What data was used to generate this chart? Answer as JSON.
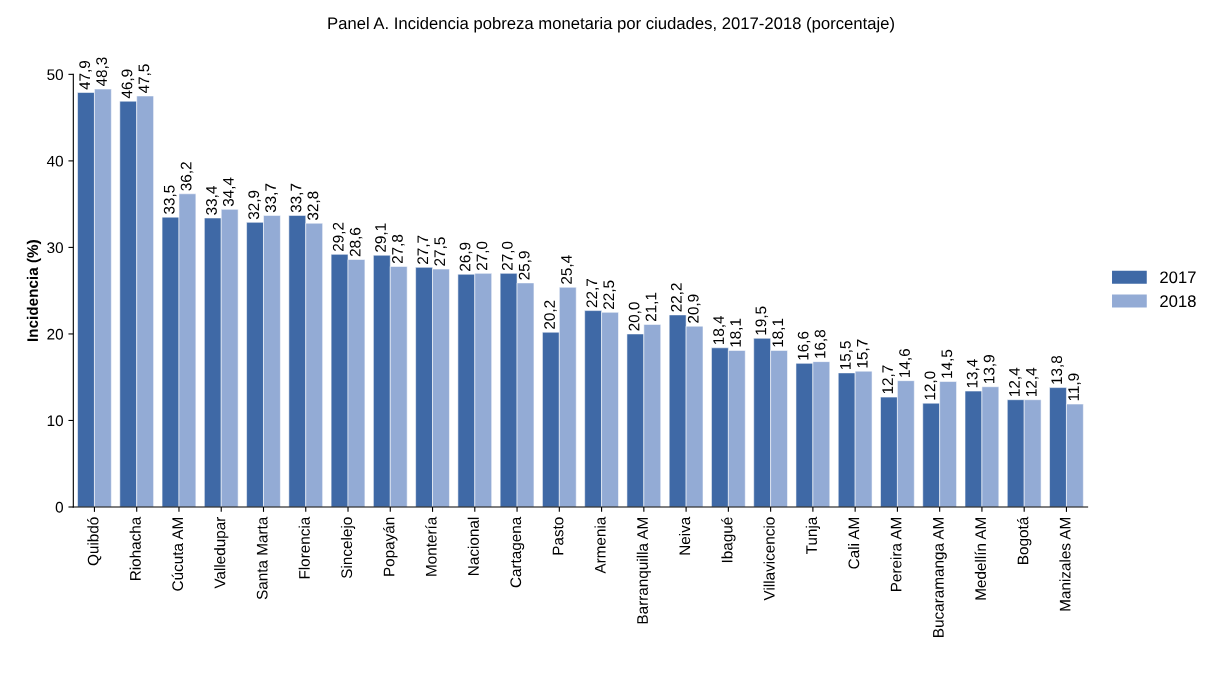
{
  "chart_data": {
    "type": "bar",
    "title": "Panel A. Incidencia pobreza monetaria por ciudades, 2017-2018 (porcentaje)",
    "ylabel": "Incidencia (%)",
    "categories": [
      "Quibdó",
      "Riohacha",
      "Cúcuta AM",
      "Valledupar",
      "Santa Marta",
      "Florencia",
      "Sincelejo",
      "Popayán",
      "Montería",
      "Nacional",
      "Cartagena",
      "Pasto",
      "Armenia",
      "Barranquilla AM",
      "Neiva",
      "Ibagué",
      "Villavicencio",
      "Tunja",
      "Cali AM",
      "Pereira AM",
      "Bucaramanga AM",
      "Medellín AM",
      "Bogotá",
      "Manizales AM"
    ],
    "series": [
      {
        "name": "2017",
        "color": "#3f69a6",
        "values": [
          47.9,
          46.9,
          33.5,
          33.4,
          32.9,
          33.7,
          29.2,
          29.1,
          27.7,
          26.9,
          27.0,
          20.2,
          22.7,
          20.0,
          22.2,
          18.4,
          19.5,
          16.6,
          15.5,
          12.7,
          12.0,
          13.4,
          12.4,
          13.8
        ],
        "value_labels": [
          "47,9",
          "46,9",
          "33,5",
          "33,4",
          "32,9",
          "33,7",
          "29,2",
          "29,1",
          "27,7",
          "26,9",
          "27,0",
          "20,2",
          "22,7",
          "20,0",
          "22,2",
          "18,4",
          "19,5",
          "16,6",
          "15,5",
          "12,7",
          "12,0",
          "13,4",
          "12,4",
          "13,8"
        ]
      },
      {
        "name": "2018",
        "color": "#93abd5",
        "values": [
          48.3,
          47.5,
          36.2,
          34.4,
          33.7,
          32.8,
          28.6,
          27.8,
          27.5,
          27.0,
          25.9,
          25.4,
          22.5,
          21.1,
          20.9,
          18.1,
          18.1,
          16.8,
          15.7,
          14.6,
          14.5,
          13.9,
          12.4,
          11.9
        ],
        "value_labels": [
          "48,3",
          "47,5",
          "36,2",
          "34,4",
          "33,7",
          "32,8",
          "28,6",
          "27,8",
          "27,5",
          "27,0",
          "25,9",
          "25,4",
          "22,5",
          "21,1",
          "20,9",
          "18,1",
          "18,1",
          "16,8",
          "15,7",
          "14,6",
          "14,5",
          "13,9",
          "12,4",
          "11,9"
        ]
      }
    ],
    "ylim": [
      0,
      50
    ],
    "yticks": [
      0,
      10,
      20,
      30,
      40,
      50
    ],
    "grid": false,
    "legend": "right"
  }
}
